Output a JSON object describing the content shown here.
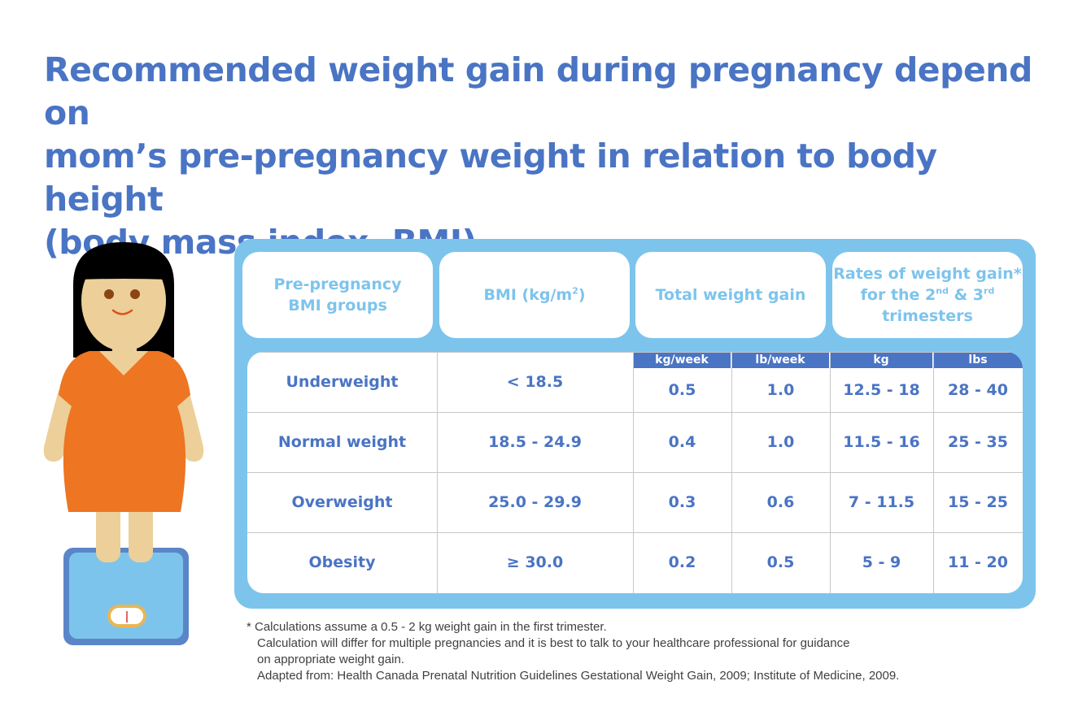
{
  "title": {
    "line1": "Recommended weight gain during pregnancy depend on",
    "line2": "mom’s pre-pregnancy weight in relation to body height",
    "line3": "(body mass index, BMI)"
  },
  "table": {
    "headers": {
      "group": [
        "Pre-pregnancy",
        "BMI groups"
      ],
      "bmi_text": "BMI (kg/m",
      "bmi_sup": "2",
      "bmi_close": ")",
      "total": "Total weight gain",
      "rates_line1": "Rates of weight gain*",
      "rates_line2a": "for the 2",
      "rates_sup1": "nd",
      "rates_line2b": " & 3",
      "rates_sup2": "rd",
      "rates_line3": "trimesters"
    },
    "subheaders": [
      "kg/week",
      "lb/week",
      "kg",
      "lbs"
    ],
    "rows": [
      {
        "group": "Underweight",
        "bmi": "< 18.5",
        "kg_week": "0.5",
        "lb_week": "1.0",
        "kg": "12.5 - 18",
        "lbs": "28 - 40"
      },
      {
        "group": "Normal weight",
        "bmi": "18.5 - 24.9",
        "kg_week": "0.4",
        "lb_week": "1.0",
        "kg": "11.5 - 16",
        "lbs": "25 - 35"
      },
      {
        "group": "Overweight",
        "bmi": "25.0 - 29.9",
        "kg_week": "0.3",
        "lb_week": "0.6",
        "kg": "7 - 11.5",
        "lbs": "15 - 25"
      },
      {
        "group": "Obesity",
        "bmi": "≥ 30.0",
        "kg_week": "0.2",
        "lb_week": "0.5",
        "kg": "5 - 9",
        "lbs": "11 - 20"
      }
    ]
  },
  "notes": [
    "* Calculations assume a 0.5 - 2 kg weight gain in the first trimester.",
    "Calculation will differ for multiple  pregnancies and it is best to talk to your healthcare professional for guidance",
    "on appropriate weight gain.",
    "Adapted from: Health Canada Prenatal Nutrition Guidelines Gestational Weight Gain, 2009; Institute of Medicine, 2009."
  ],
  "colors": {
    "title": "#4a74c4",
    "panel": "#7dc4ec",
    "subheader": "#4a74c4",
    "dress": "#ee7522",
    "skin": "#edcf99",
    "scale": "#7dc4ec"
  },
  "icons": {
    "illustration": "pregnant-woman-on-scale-icon"
  }
}
